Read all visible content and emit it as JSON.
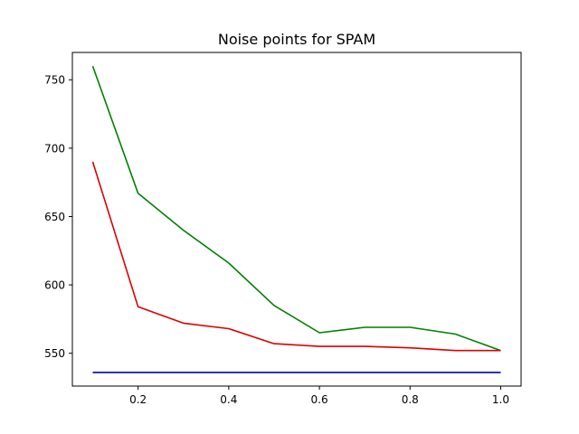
{
  "chart_data": {
    "type": "line",
    "title": "Noise points for SPAM",
    "xlabel": "",
    "ylabel": "",
    "xlim": [
      0.055,
      1.045
    ],
    "ylim": [
      526,
      770
    ],
    "xticks": [
      0.2,
      0.4,
      0.6,
      0.8,
      1.0
    ],
    "xtick_labels": [
      "0.2",
      "0.4",
      "0.6",
      "0.8",
      "1.0"
    ],
    "yticks": [
      550,
      600,
      650,
      700,
      750
    ],
    "ytick_labels": [
      "550",
      "600",
      "650",
      "700",
      "750"
    ],
    "grid": false,
    "x": [
      0.1,
      0.2,
      0.3,
      0.4,
      0.5,
      0.6,
      0.7,
      0.8,
      0.9,
      1.0
    ],
    "series": [
      {
        "color": "#008000",
        "values": [
          760,
          667,
          640,
          616,
          585,
          565,
          569,
          569,
          564,
          552
        ]
      },
      {
        "color": "#dd0000",
        "values": [
          690,
          584,
          572,
          568,
          557,
          555,
          555,
          554,
          552,
          552
        ]
      },
      {
        "color": "#0000aa",
        "values": [
          536,
          536,
          536,
          536,
          536,
          536,
          536,
          536,
          536,
          536
        ]
      }
    ]
  }
}
